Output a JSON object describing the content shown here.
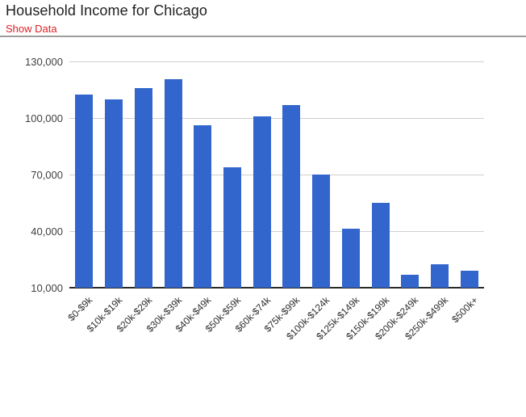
{
  "header": {
    "title": "Household Income for Chicago",
    "show_data_label": "Show Data"
  },
  "colors": {
    "bar_blue": "#3366cc",
    "link_red": "#dd2027",
    "gridline_gray": "#cfcfcf",
    "baseline_dark": "#2a2a2a",
    "axis_text": "#3f3f3f",
    "title_text": "#1f1f1f",
    "divider_gray": "#9d9d9d"
  },
  "chart_data": {
    "type": "bar",
    "title": "Household Income for Chicago",
    "categories": [
      "$0-$9k",
      "$10k-$19k",
      "$20k-$29k",
      "$30k-$39k",
      "$40k-$49k",
      "$50k-$59k",
      "$60k-$74k",
      "$75k-$99k",
      "$100k-$124k",
      "$125k-$149k",
      "$150k-$199k",
      "$200k-$249k",
      "$250k-$499k",
      "$500k+"
    ],
    "values": [
      112500,
      110000,
      116000,
      120500,
      96000,
      74000,
      101000,
      107000,
      70000,
      41500,
      55000,
      17000,
      22500,
      19000
    ],
    "xlabel": "",
    "ylabel": "",
    "ylim": [
      10000,
      130000
    ],
    "ytick_interval": 30000,
    "yticks": [
      "10,000",
      "40,000",
      "70,000",
      "100,000",
      "130,000"
    ],
    "grid": true,
    "legend": "none",
    "x_label_rotation_deg": -45,
    "bar_color": "#3366cc"
  }
}
